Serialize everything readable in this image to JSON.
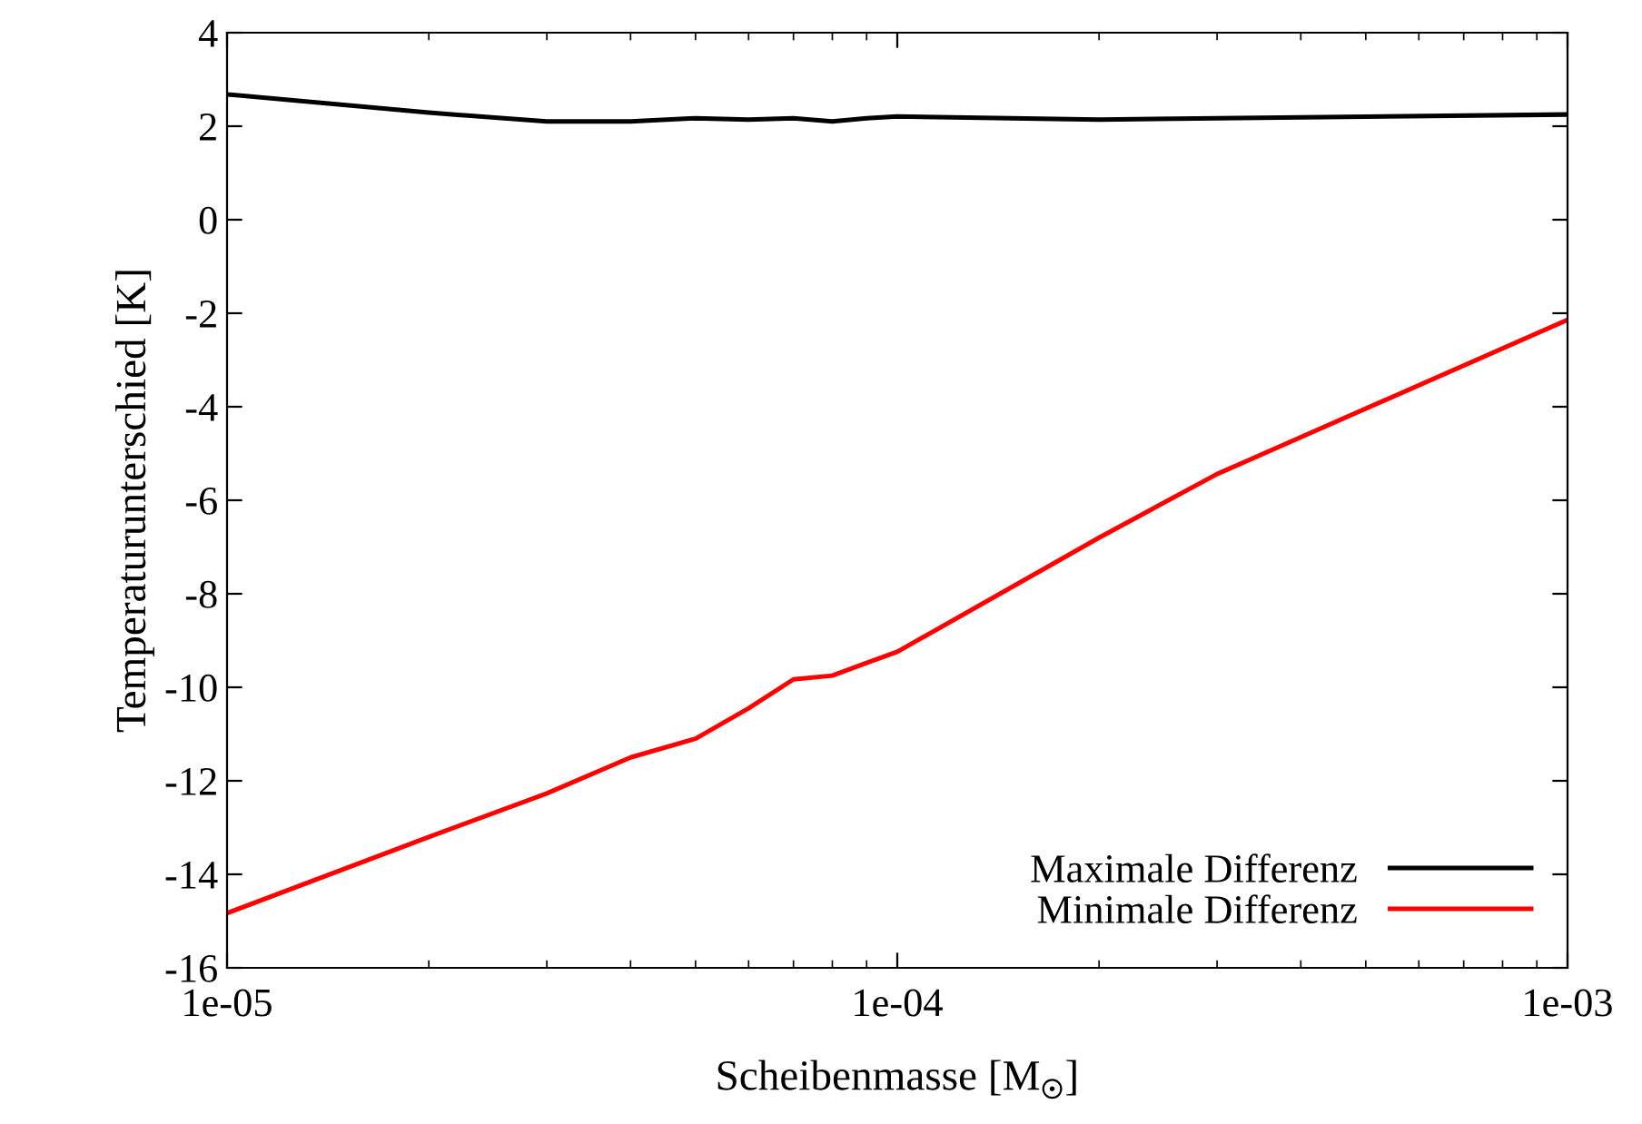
{
  "chart_data": {
    "type": "line",
    "xlabel": "Scheibenmasse [M$_{☉}$]",
    "ylabel": "Temperaturunterschied [K]",
    "x": [
      1e-05,
      2e-05,
      3e-05,
      4e-05,
      5e-05,
      6e-05,
      7e-05,
      8e-05,
      9e-05,
      0.0001,
      0.0002,
      0.0003,
      0.001
    ],
    "series": [
      {
        "name": "Maximale Differenz",
        "color": "#000000",
        "values": [
          2.68,
          2.29,
          2.1,
          2.1,
          2.17,
          2.14,
          2.17,
          2.1,
          2.17,
          2.21,
          2.14,
          2.17,
          2.25
        ]
      },
      {
        "name": "Minimale Differenz",
        "color": "#ff0000",
        "values": [
          -14.83,
          -13.2,
          -12.27,
          -11.5,
          -11.1,
          -10.45,
          -9.83,
          -9.75,
          -9.48,
          -9.24,
          -6.8,
          -5.44,
          -2.14
        ]
      }
    ],
    "log": "x",
    "xlim": [
      1e-05,
      0.001
    ],
    "xticks": [
      {
        "value": 1e-05,
        "label": "1e-05"
      },
      {
        "value": 0.0001,
        "label": "1e-04"
      },
      {
        "value": 0.001,
        "label": "1e-03"
      }
    ],
    "ylim": [
      -16,
      4
    ],
    "yticks": [
      -16,
      -14,
      -12,
      -10,
      -8,
      -6,
      -4,
      -2,
      0,
      2,
      4
    ],
    "legend": "bottom right",
    "grid": false,
    "marker": "none",
    "line_style": "solid"
  }
}
